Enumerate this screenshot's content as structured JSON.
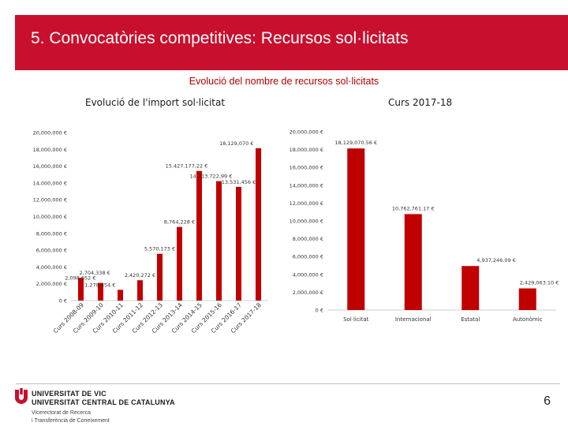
{
  "slide": {
    "title": "5. Convocatòries competitives: Recursos sol·licitats",
    "subtitle": "Evolució del nombre de recursos sol·licitats",
    "page_number": "6"
  },
  "colors": {
    "accent": "#c8102e",
    "bar": "#c00000",
    "axis_text": "#333333"
  },
  "footer": {
    "logo_icon": "university-logo-icon",
    "line1": "UNIVERSITAT DE VIC",
    "line2": "UNIVERSITAT CENTRAL DE CATALUNYA",
    "line3": "Vicerectorat de Recerca",
    "line4": "i Transferència de Coneixement"
  },
  "chart_data": [
    {
      "type": "bar",
      "title": "Evolució de l'import sol·licitat",
      "categories": [
        "Curs 2008-09",
        "Curs 2009-10",
        "Curs 2010-11",
        "Curs 2011-12",
        "Curs 2012-13",
        "Curs 2013-14",
        "Curs 2014-15",
        "Curs 2015-16",
        "Curs 2016-17",
        "Curs 2017-18"
      ],
      "values": [
        2704338,
        2098652,
        1278554,
        2420272,
        5570173,
        8764228,
        15427177.22,
        14213722.99,
        13531456,
        18129070
      ],
      "data_labels": [
        "2,704,338 €",
        "2,098,652 €",
        "1,278,554 €",
        "2,420,272 €",
        "5,570,173 €",
        "8,764,228 €",
        "15.427.177,22 €",
        "14.213.722,99 €",
        "13,531,456 €",
        "18,129,070 €"
      ],
      "yticks": [
        "0 €",
        "2,000,000 €",
        "4,000,000 €",
        "6,000,000 €",
        "8,000,000 €",
        "10,000,000 €",
        "12,000,000 €",
        "14,000,000 €",
        "16,000,000 €",
        "18,000,000 €",
        "20,000,000 €"
      ],
      "ylim": [
        0,
        20000000
      ],
      "grid": false,
      "legend": "none"
    },
    {
      "type": "bar",
      "title": "Curs 2017-18",
      "categories": [
        "Sol·licitat",
        "Internacional",
        "Estatal",
        "Autonòmic"
      ],
      "values": [
        18129070.56,
        10762761.17,
        4937246.09,
        2429063.1
      ],
      "data_labels": [
        "18,129,070.56 €",
        "10,762,761.17 €",
        "4,937,246.09 €",
        "2,429,063.10 €"
      ],
      "yticks": [
        "0 €",
        "2,000,000 €",
        "4,000,000 €",
        "6,000,000 €",
        "8,000,000 €",
        "10,000,000 €",
        "12,000,000 €",
        "14,000,000 €",
        "16,000,000 €",
        "18,000,000 €",
        "20,000,000 €"
      ],
      "ylim": [
        0,
        20000000
      ],
      "grid": false,
      "legend": "none"
    }
  ]
}
